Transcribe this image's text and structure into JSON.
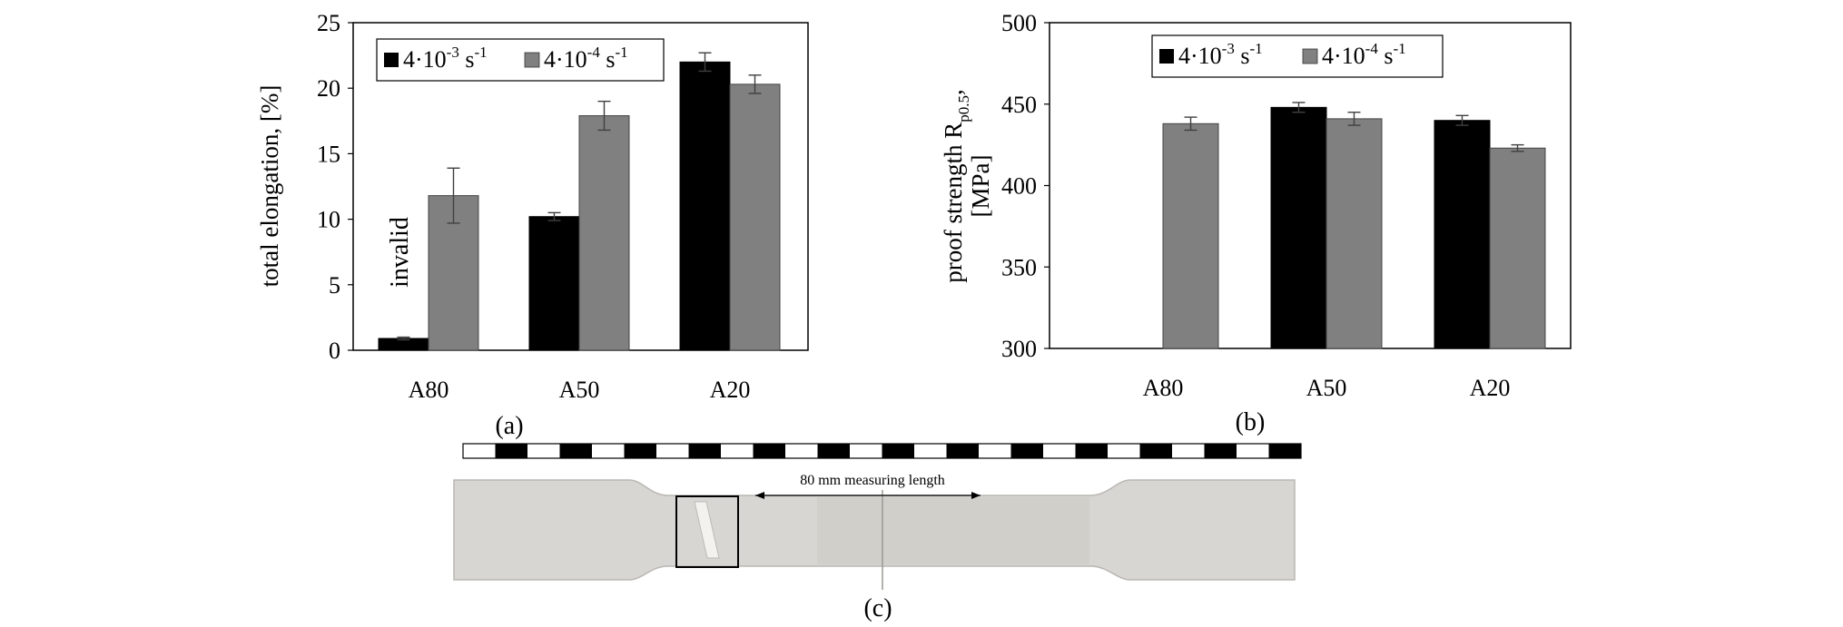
{
  "colors": {
    "series1": "#000000",
    "series2": "#808080",
    "errorbar": "#404040",
    "specimen": "#d8d6d2",
    "specimen_edge": "#b9b7b2"
  },
  "chart_data": [
    {
      "type": "bar",
      "panel_label": "(a)",
      "categories": [
        "A80",
        "A50",
        "A20"
      ],
      "ylabel": "total elongation, [%]",
      "ylim": [
        0,
        25
      ],
      "yticks": [
        0,
        5,
        10,
        15,
        20,
        25
      ],
      "legend_position": "top",
      "series": [
        {
          "name": "4·10-3 s-1",
          "name_base": "4·10",
          "name_exp": "-3",
          "name_unit": " s",
          "name_unit_exp": "-1",
          "color": "#000000",
          "values": [
            0.9,
            10.2,
            22.0
          ],
          "errors": [
            0.1,
            0.3,
            0.7
          ]
        },
        {
          "name": "4·10-4 s-1",
          "name_base": "4·10",
          "name_exp": "-4",
          "name_unit": " s",
          "name_unit_exp": "-1",
          "color": "#808080",
          "values": [
            11.8,
            17.9,
            20.3
          ],
          "errors": [
            2.1,
            1.1,
            0.7
          ]
        }
      ],
      "annotations": [
        {
          "text": "invalid",
          "category": "A80"
        }
      ]
    },
    {
      "type": "bar",
      "panel_label": "(b)",
      "categories": [
        "A80",
        "A50",
        "A20"
      ],
      "ylabel_main": "proof strength R",
      "ylabel_sub": "p0.5",
      "ylabel_tail": ",",
      "ylabel_unit": "[MPa]",
      "ylim": [
        300,
        500
      ],
      "yticks": [
        300,
        350,
        400,
        450,
        500
      ],
      "legend_position": "top",
      "series": [
        {
          "name": "4·10-3 s-1",
          "name_base": "4·10",
          "name_exp": "-3",
          "name_unit": " s",
          "name_unit_exp": "-1",
          "color": "#000000",
          "values": [
            300,
            448,
            440
          ],
          "errors": [
            0,
            3,
            3
          ]
        },
        {
          "name": "4·10-4 s-1",
          "name_base": "4·10",
          "name_exp": "-4",
          "name_unit": " s",
          "name_unit_exp": "-1",
          "color": "#808080",
          "values": [
            438,
            441,
            423
          ],
          "errors": [
            4,
            4,
            2
          ]
        }
      ]
    }
  ],
  "photo": {
    "panel_label": "(c)",
    "annotation": "80 mm measuring length",
    "scale_segments": 26
  }
}
